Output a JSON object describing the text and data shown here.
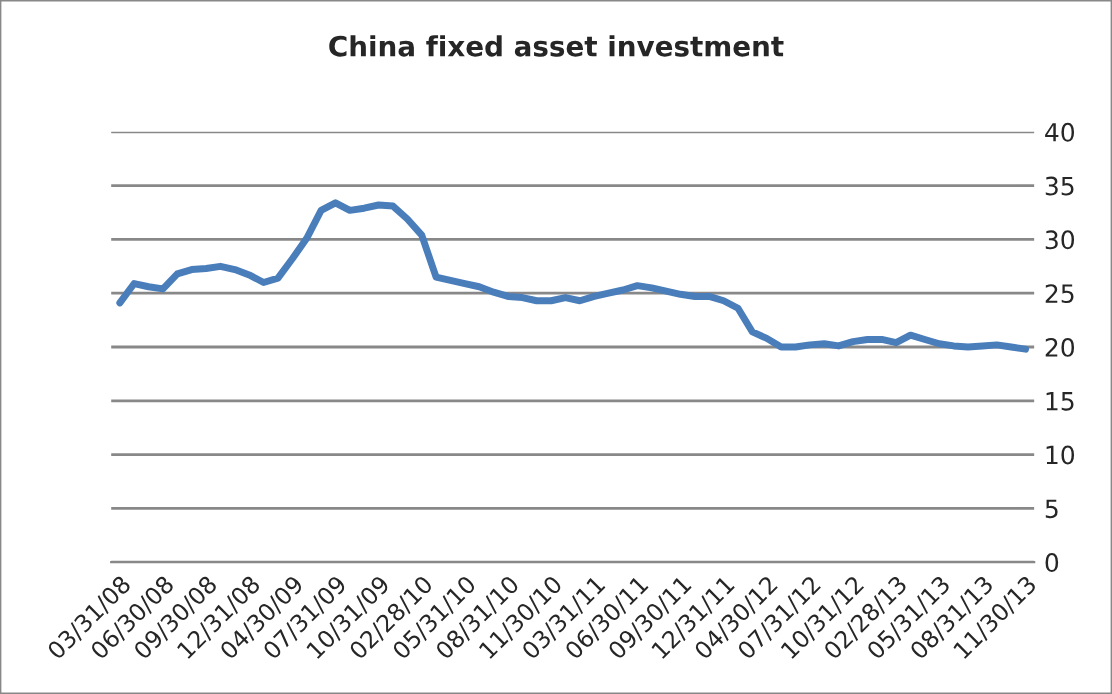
{
  "chart_data": {
    "type": "line",
    "title": "China fixed asset investment",
    "categories": [
      "03/31/08",
      null,
      null,
      "06/30/08",
      null,
      null,
      "09/30/08",
      null,
      null,
      "12/31/08",
      null,
      null,
      "04/30/09",
      null,
      null,
      "07/31/09",
      null,
      null,
      "10/31/09",
      null,
      null,
      "02/28/10",
      null,
      null,
      "05/31/10",
      null,
      null,
      "08/31/10",
      null,
      null,
      "11/30/10",
      null,
      null,
      "03/31/11",
      null,
      null,
      "06/30/11",
      null,
      null,
      "09/30/11",
      null,
      null,
      "12/31/11",
      null,
      null,
      "04/30/12",
      null,
      null,
      "07/31/12",
      null,
      null,
      "10/31/12",
      null,
      null,
      "02/28/13",
      null,
      null,
      "05/31/13",
      null,
      null,
      "08/31/13",
      null,
      null,
      "11/30/13"
    ],
    "series": [
      {
        "color": "#4a7ebb",
        "values": [
          24.1,
          25.9,
          25.6,
          25.4,
          26.8,
          27.2,
          27.3,
          27.5,
          27.2,
          26.7,
          26.0,
          26.4,
          28.2,
          30.1,
          32.7,
          33.4,
          32.7,
          32.9,
          33.2,
          33.1,
          31.9,
          30.4,
          26.5,
          26.2,
          25.9,
          25.6,
          25.1,
          24.7,
          24.6,
          24.3,
          24.3,
          24.6,
          24.3,
          24.7,
          25.0,
          25.3,
          25.7,
          25.5,
          25.2,
          24.9,
          24.7,
          24.7,
          24.3,
          23.6,
          21.4,
          20.8,
          20.0,
          20.0,
          20.2,
          20.3,
          20.1,
          20.5,
          20.7,
          20.7,
          20.4,
          21.1,
          20.7,
          20.3,
          20.1,
          20.0,
          20.1,
          20.2,
          20.0,
          19.8
        ]
      }
    ],
    "ylim": [
      0,
      40
    ],
    "yticks": [
      0,
      5,
      10,
      15,
      20,
      25,
      30,
      35,
      40
    ],
    "grid": "y",
    "legend": false
  }
}
